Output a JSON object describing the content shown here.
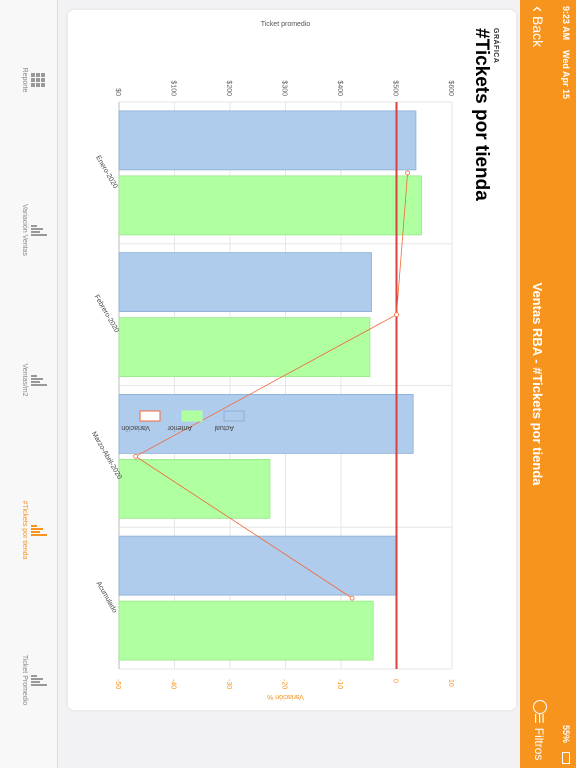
{
  "status": {
    "time": "9:23 AM",
    "date": "Wed Apr 15",
    "battery": "55%"
  },
  "nav": {
    "back_label": "Back",
    "title": "Ventas RBA - #Tickets por tienda",
    "filter_label": "Filtros"
  },
  "card": {
    "small_title": "GRÁFICA",
    "big_title": "#Tickets por tienda"
  },
  "chart_data": {
    "type": "bar",
    "categories": [
      "Enero-2020",
      "Febrero-2020",
      "Marzo-Abril-2020",
      "Acumulado"
    ],
    "series": [
      {
        "name": "Actual",
        "values": [
          535,
          455,
          530,
          500
        ],
        "color": "#b0ccec"
      },
      {
        "name": "Anterior",
        "values": [
          545,
          452,
          272,
          458
        ],
        "color": "#b0ffa0"
      }
    ],
    "line_series": {
      "name": "Variación",
      "values": [
        2,
        0,
        -47,
        -8
      ],
      "color": "#f06a3a"
    },
    "reference_line": {
      "value": 500,
      "color": "#d94040"
    },
    "ylabel": "Ticket promedio",
    "y2label": "Variación %",
    "ylim": [
      0,
      600
    ],
    "y2lim": [
      -50,
      10
    ],
    "yticks": [
      "$0",
      "$100",
      "$200",
      "$300",
      "$400",
      "$500",
      "$600"
    ],
    "y2ticks": [
      "-50",
      "-40",
      "-30",
      "-20",
      "-10",
      "0",
      "10"
    ],
    "legend_position": "right"
  },
  "tabs": [
    {
      "label": "Reporte",
      "icon": "grid-icon",
      "active": false
    },
    {
      "label": "Variación Ventas",
      "icon": "bar-chart-icon",
      "active": false
    },
    {
      "label": "Ventas/m2",
      "icon": "bar-chart-icon",
      "active": false
    },
    {
      "label": "#Tickets por tienda",
      "icon": "bar-chart-icon",
      "active": true
    },
    {
      "label": "Ticket Promedio",
      "icon": "bar-chart-icon",
      "active": false
    }
  ],
  "colors": {
    "accent": "#f7941d"
  }
}
